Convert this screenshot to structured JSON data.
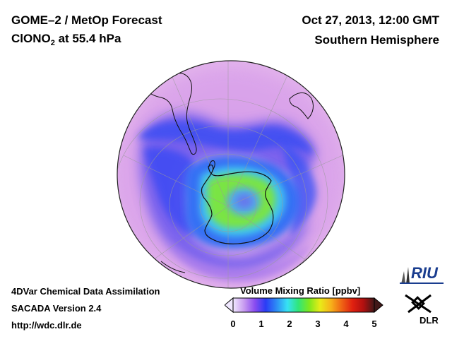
{
  "header": {
    "title_line1": "GOME–2 / MetOp Forecast",
    "species_prefix": "ClONO",
    "species_subscript": "2",
    "species_suffix": " at 55.4 hPa",
    "date": "Oct 27, 2013, 12:00 GMT",
    "region": "Southern Hemisphere"
  },
  "footer": {
    "line1": "4DVar Chemical Data Assimilation",
    "line2": "SACADA Version 2.4",
    "line3": "http://wdc.dlr.de"
  },
  "colorbar": {
    "title": "Volume Mixing Ratio [ppbv]",
    "ticks": [
      "0",
      "1",
      "2",
      "3",
      "4",
      "5"
    ],
    "min": 0,
    "max": 5,
    "stops": [
      "#f0e8ff",
      "#c89cf0",
      "#8a4cf0",
      "#2a3cf5",
      "#2d8cf5",
      "#37e2f4",
      "#30e67a",
      "#7ee81e",
      "#e8ec18",
      "#f7b21a",
      "#ef6414",
      "#e02010",
      "#b01010",
      "#401818"
    ]
  },
  "logos": {
    "riu": "RIU",
    "dlr": "DLR"
  },
  "map": {
    "projection": "orthographic, south pole view",
    "variable": "ClONO2",
    "pressure_level_hpa": 55.4,
    "colors": {
      "background_field": "#d9a2e8",
      "low_band": "#5a5cf0",
      "ring": "#3b6ef4",
      "mid": "#4dd4f0",
      "high": "#8fe838",
      "coast": "#111111"
    }
  }
}
